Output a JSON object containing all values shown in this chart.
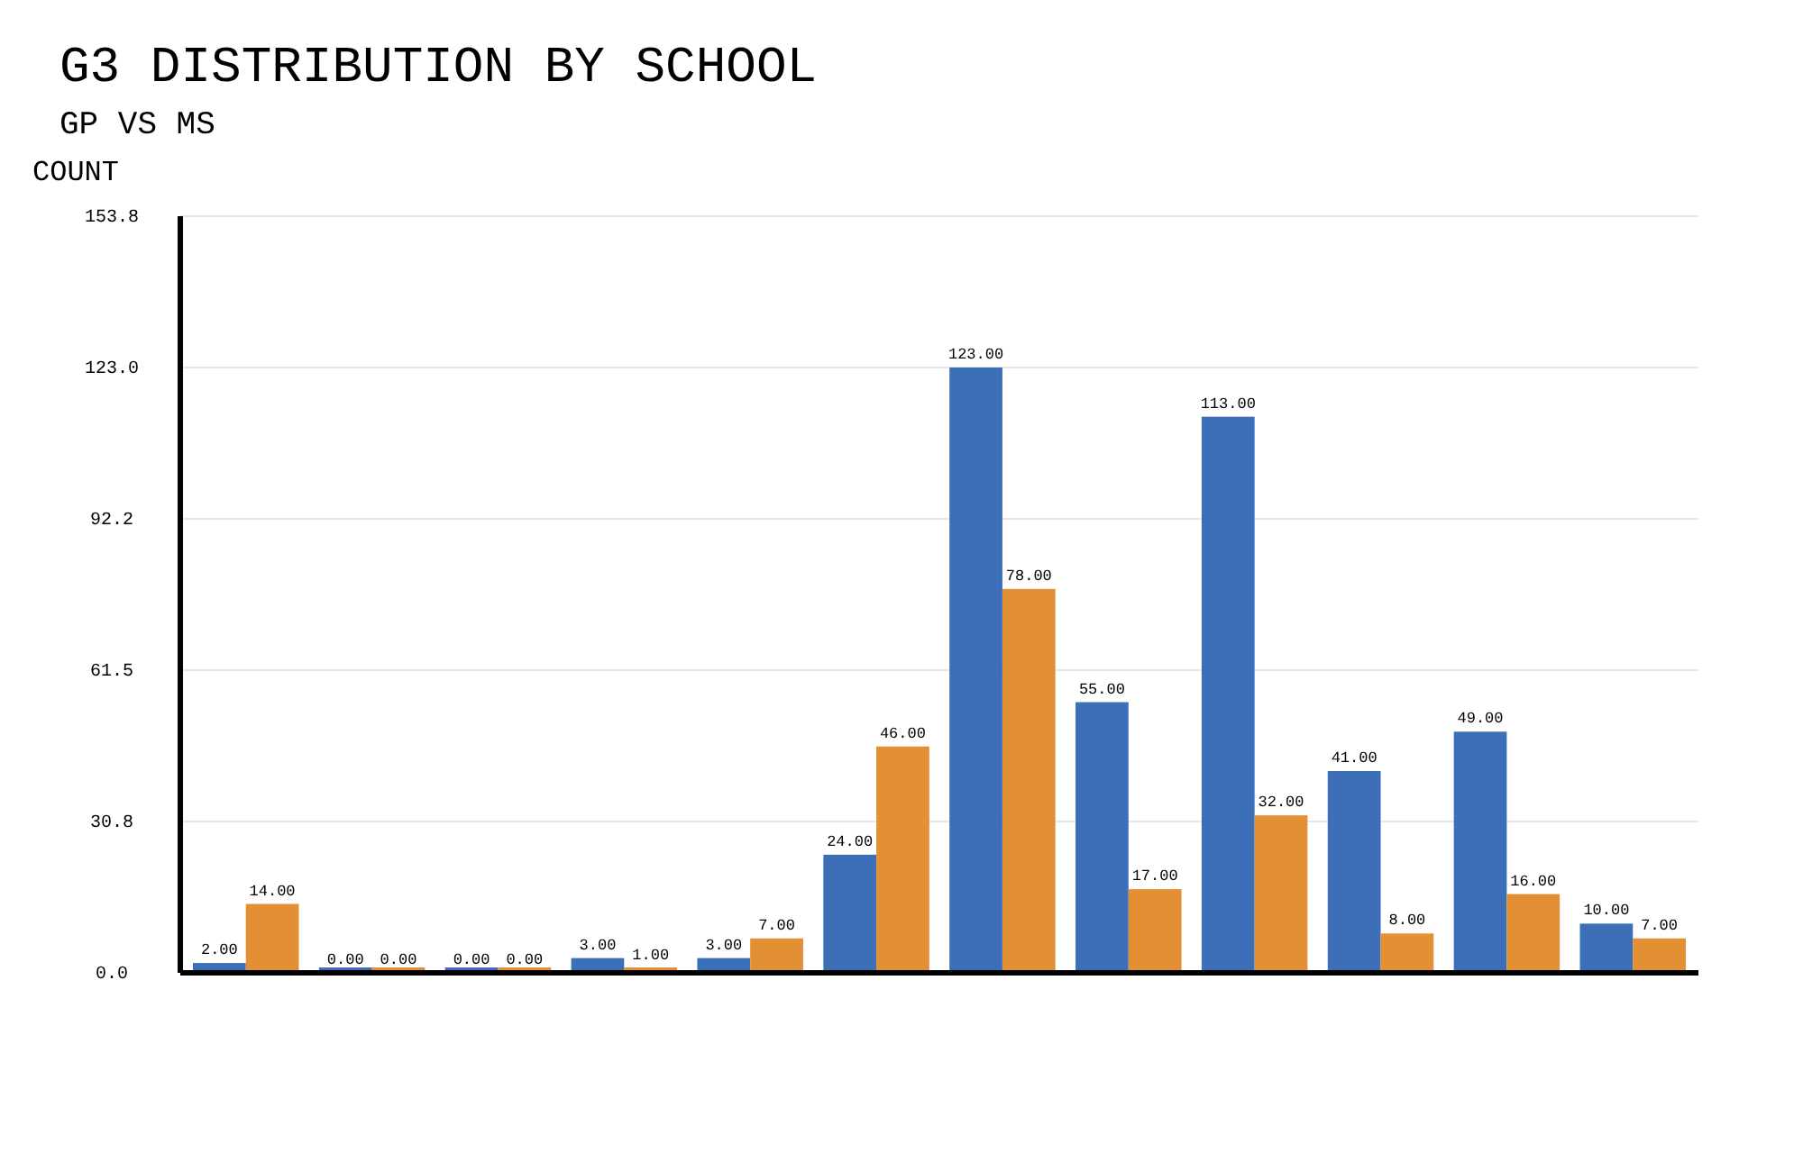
{
  "chart_data": {
    "type": "bar",
    "title": "G3 DISTRIBUTION BY SCHOOL",
    "subtitle": "GP VS MS",
    "ylabel": "COUNT",
    "categories": [
      null,
      null,
      null,
      null,
      null,
      null,
      null,
      null,
      null,
      null,
      null,
      null
    ],
    "series": [
      {
        "color": "#3d6fb8",
        "values": [
          2,
          0,
          0,
          3,
          3,
          24,
          123,
          55,
          113,
          41,
          49,
          10
        ],
        "value_labels": [
          "2.00",
          "0.00",
          "0.00",
          "3.00",
          "3.00",
          "24.00",
          "123.00",
          "55.00",
          "113.00",
          "41.00",
          "49.00",
          "10.00"
        ]
      },
      {
        "color": "#e38f33",
        "values": [
          14,
          0,
          0,
          1,
          7,
          46,
          78,
          17,
          32,
          8,
          16,
          7
        ],
        "value_labels": [
          "14.00",
          "0.00",
          "0.00",
          "1.00",
          "7.00",
          "46.00",
          "78.00",
          "17.00",
          "32.00",
          "8.00",
          "16.00",
          "7.00"
        ]
      }
    ],
    "ylim": [
      0,
      153.75
    ],
    "yticks": [
      {
        "value": 0,
        "label": "0.0"
      },
      {
        "value": 30.75,
        "label": "30.8"
      },
      {
        "value": 61.5,
        "label": "61.5"
      },
      {
        "value": 92.25,
        "label": "92.2"
      },
      {
        "value": 123,
        "label": "123.0"
      },
      {
        "value": 153.75,
        "label": "153.8"
      }
    ],
    "grid": "y"
  }
}
